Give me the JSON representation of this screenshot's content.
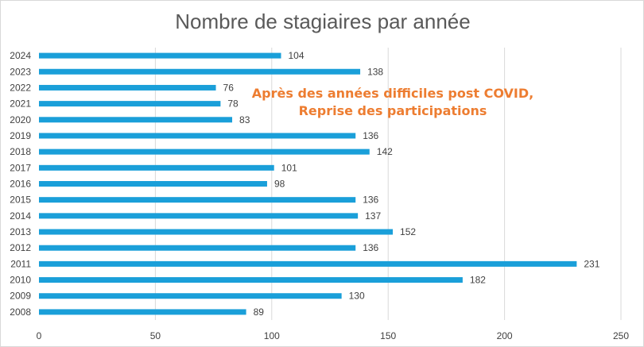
{
  "chart_data": {
    "type": "bar",
    "orientation": "horizontal",
    "title": "Nombre de stagiaires par année",
    "xlabel": "",
    "ylabel": "",
    "categories": [
      "2024",
      "2023",
      "2022",
      "2021",
      "2020",
      "2019",
      "2018",
      "2017",
      "2016",
      "2015",
      "2014",
      "2013",
      "2012",
      "2011",
      "2010",
      "2009",
      "2008"
    ],
    "values": [
      104,
      138,
      76,
      78,
      83,
      136,
      142,
      101,
      98,
      136,
      137,
      152,
      136,
      231,
      182,
      130,
      89
    ],
    "xlim": [
      0,
      250
    ],
    "xticks": [
      "0",
      "50",
      "100",
      "150",
      "200",
      "250"
    ],
    "grid": true,
    "bar_color": "#1A9FD9",
    "annotation": {
      "lines": [
        "Après des années difficiles post COVID,",
        "Reprise des participations"
      ],
      "color": "#ED7D31"
    }
  }
}
